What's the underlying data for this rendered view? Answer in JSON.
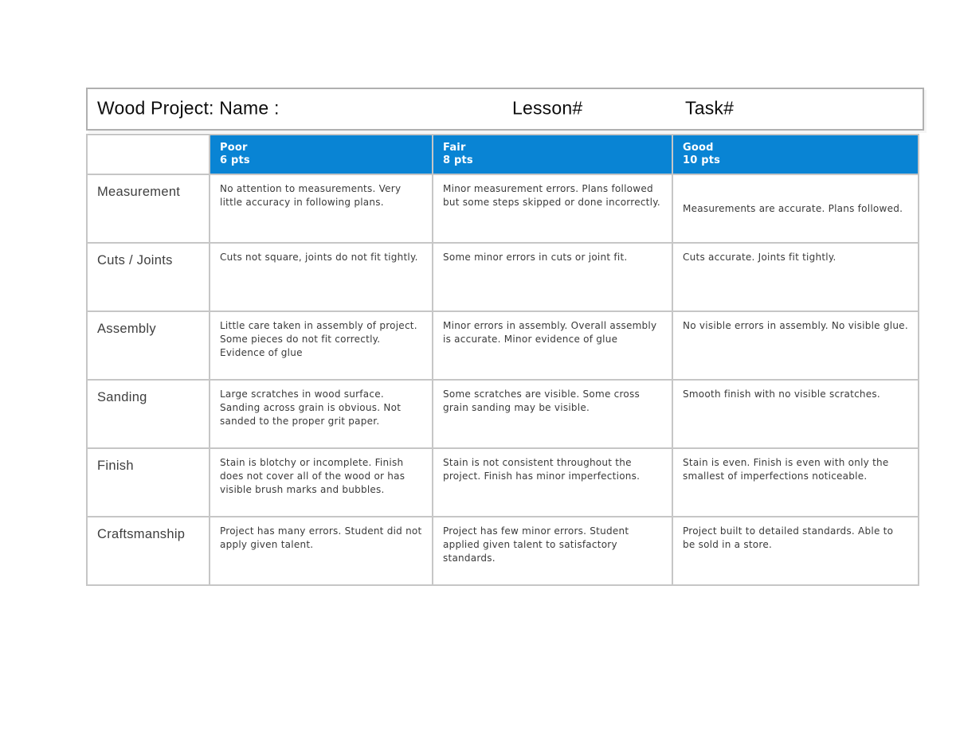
{
  "colors": {
    "page_bg": "#ffffff",
    "header_bg": "#0984d4",
    "header_text": "#ffffff",
    "border": "#c6c6c6",
    "title_border": "#b0b0b0",
    "body_text": "#3a3a3a",
    "title_text": "#0d0d0d",
    "label_text": "#3f3f3f"
  },
  "title_bar": {
    "project_label": "Wood Project: Name :",
    "lesson_label": "Lesson#",
    "task_label": "Task#"
  },
  "rubric": {
    "columns": [
      {
        "label": "Poor",
        "points": "6 pts"
      },
      {
        "label": "Fair",
        "points": "8 pts"
      },
      {
        "label": "Good",
        "points": "10 pts"
      }
    ],
    "rows": [
      {
        "criterion": "Measurement",
        "cells": [
          {
            "text": "No attention to measurements. Very little accuracy in following plans."
          },
          {
            "text": "Minor measurement errors. Plans followed but some steps skipped or done incorrectly."
          },
          {
            "text": "Measurements are accurate. Plans followed."
          }
        ]
      },
      {
        "criterion": "Cuts / Joints",
        "cells": [
          {
            "text": "Cuts not square, joints do not fit tightly."
          },
          {
            "text": "Some minor errors in cuts or joint fit."
          },
          {
            "text": "Cuts accurate. Joints fit tightly."
          }
        ]
      },
      {
        "criterion": "Assembly",
        "cells": [
          {
            "text": "Little care taken in assembly of project. Some pieces do not fit correctly. Evidence of glue"
          },
          {
            "text": "Minor errors in assembly. Overall assembly is accurate. Minor evidence of glue"
          },
          {
            "text": "No visible errors in assembly. No visible glue."
          }
        ]
      },
      {
        "criterion": "Sanding",
        "cells": [
          {
            "text": "Large scratches in wood surface. Sanding across grain is obvious. Not sanded to the proper grit paper."
          },
          {
            "text": "Some scratches are visible. Some cross grain sanding may be visible."
          },
          {
            "text": "Smooth finish with no visible scratches."
          }
        ]
      },
      {
        "criterion": "Finish",
        "cells": [
          {
            "text": "Stain is blotchy or incomplete. Finish does not cover all of the wood or has visible brush marks and bubbles."
          },
          {
            "text": "Stain is not consistent throughout the project. Finish has minor imperfections."
          },
          {
            "text": "Stain is even. Finish is even with only the smallest of imperfections noticeable."
          }
        ]
      },
      {
        "criterion": "Craftsmanship",
        "cells": [
          {
            "text": "Project has many errors. Student did not apply given talent."
          },
          {
            "text": "Project has few minor errors. Student applied given talent to satisfactory standards."
          },
          {
            "text": "Project built to detailed standards. Able to be sold in a store."
          }
        ]
      }
    ]
  }
}
